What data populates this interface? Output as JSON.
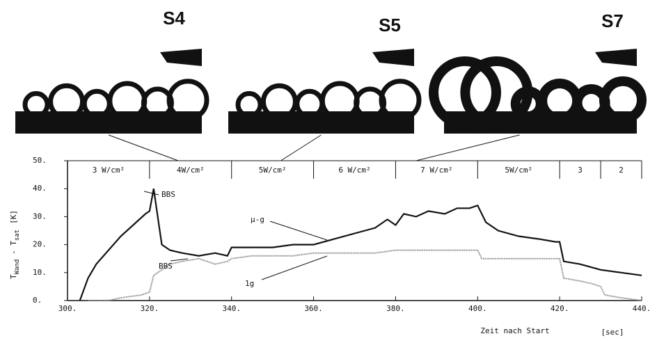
{
  "chart_data": {
    "type": "line",
    "y_label": {
      "t1": "T",
      "s1": "Wand",
      "t2": " - T",
      "s2": "sat",
      "unit": "[K]"
    },
    "x_label": "Zeit nach Start",
    "x_unit": "[sec]",
    "xlim": [
      300,
      440
    ],
    "xticks": [
      {
        "value": 300,
        "label": "300."
      },
      {
        "value": 320,
        "label": "320."
      },
      {
        "value": 340,
        "label": "340."
      },
      {
        "value": 360,
        "label": "360."
      },
      {
        "value": 380,
        "label": "380."
      },
      {
        "value": 400,
        "label": "400."
      },
      {
        "value": 420,
        "label": "420."
      },
      {
        "value": 440,
        "label": "440."
      }
    ],
    "ylim": [
      0,
      50
    ],
    "yticks": [
      {
        "value": 0,
        "label": "0."
      },
      {
        "value": 10,
        "label": "10."
      },
      {
        "value": 20,
        "label": "20."
      },
      {
        "value": 30,
        "label": "30."
      },
      {
        "value": 40,
        "label": "40."
      },
      {
        "value": 50,
        "label": "50."
      }
    ],
    "bands": [
      {
        "label": "3 W/cm²",
        "start": 300,
        "end": 320
      },
      {
        "label": "4W/cm²",
        "start": 320,
        "end": 340
      },
      {
        "label": "5W/cm²",
        "start": 340,
        "end": 360
      },
      {
        "label": "6 W/cm²",
        "start": 360,
        "end": 380
      },
      {
        "label": "7 W/cm²",
        "start": 380,
        "end": 400
      },
      {
        "label": "5W/cm²",
        "start": 400,
        "end": 420
      },
      {
        "label": "3",
        "start": 420,
        "end": 430
      },
      {
        "label": "2",
        "start": 430,
        "end": 440
      }
    ],
    "photos": [
      {
        "label": "S4",
        "time": 327
      },
      {
        "label": "S5",
        "time": 352
      },
      {
        "label": "S7",
        "time": 385
      }
    ],
    "annotations": [
      "BBS",
      "BBS"
    ],
    "series": [
      {
        "name": "μ-g",
        "color": "#111111",
        "x": [
          303,
          305,
          307,
          310,
          313,
          316,
          319,
          320,
          321,
          322,
          323,
          325,
          328,
          332,
          336,
          339,
          340,
          345,
          350,
          355,
          360,
          365,
          370,
          375,
          378,
          380,
          382,
          385,
          388,
          392,
          395,
          398,
          400,
          402,
          405,
          410,
          415,
          419,
          420,
          421,
          425,
          430,
          435,
          440
        ],
        "values": [
          0,
          8,
          13,
          18,
          23,
          27,
          31,
          32,
          40,
          30,
          20,
          18,
          17,
          16,
          17,
          16,
          19,
          19,
          19,
          20,
          20,
          22,
          24,
          26,
          29,
          27,
          31,
          30,
          32,
          31,
          33,
          33,
          34,
          28,
          25,
          23,
          22,
          21,
          21,
          14,
          13,
          11,
          10,
          9
        ]
      },
      {
        "name": "1g",
        "color": "#888888",
        "x": [
          305,
          310,
          313,
          318,
          320,
          321,
          323,
          325,
          328,
          332,
          334,
          336,
          339,
          340,
          345,
          350,
          355,
          360,
          365,
          370,
          375,
          380,
          385,
          390,
          395,
          400,
          401,
          405,
          410,
          415,
          420,
          421,
          425,
          428,
          430,
          431,
          435,
          440
        ],
        "values": [
          0,
          0,
          1,
          2,
          3,
          9,
          11,
          13,
          14,
          15,
          14,
          13,
          14,
          15,
          16,
          16,
          16,
          17,
          17,
          17,
          17,
          18,
          18,
          18,
          18,
          18,
          15,
          15,
          15,
          15,
          15,
          8,
          7,
          6,
          5,
          2,
          1,
          0
        ]
      }
    ]
  }
}
